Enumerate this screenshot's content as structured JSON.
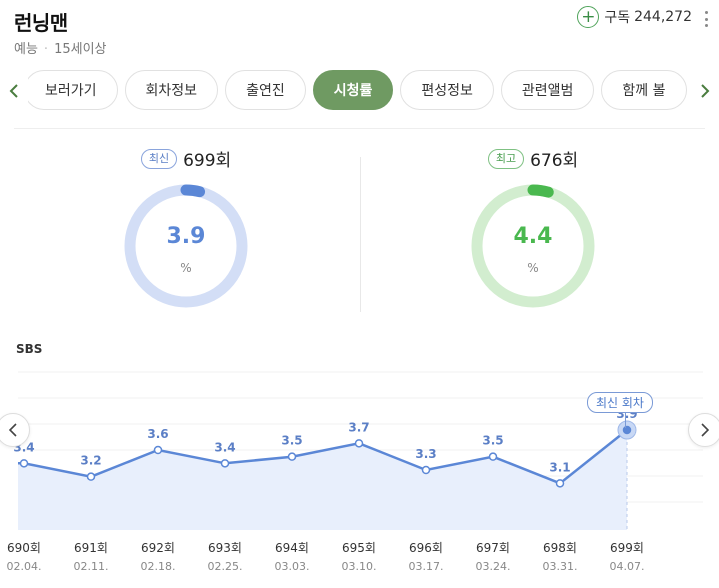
{
  "header": {
    "title": "런닝맨",
    "genre": "예능",
    "age_rating": "15세이상",
    "subscribe_label": "구독",
    "subscribe_count": "244,272"
  },
  "tabs": [
    {
      "label": "보러가기",
      "active": false
    },
    {
      "label": "회차정보",
      "active": false
    },
    {
      "label": "출연진",
      "active": false
    },
    {
      "label": "시청률",
      "active": true
    },
    {
      "label": "편성정보",
      "active": false
    },
    {
      "label": "관련앨범",
      "active": false
    },
    {
      "label": "함께 볼",
      "active": false
    }
  ],
  "latest": {
    "badge": "최신",
    "episode": "699회",
    "value": "3.9",
    "fraction": 0.039,
    "unit": "%",
    "color": "#5b87d6",
    "track_color": "#d3def6"
  },
  "best": {
    "badge": "최고",
    "episode": "676회",
    "value": "4.4",
    "fraction": 0.044,
    "unit": "%",
    "color": "#4ab84f",
    "track_color": "#d2edcf"
  },
  "chart_label": "SBS",
  "chart_callout": "최신 회차",
  "chart_data": {
    "type": "area",
    "episodes": [
      "690회",
      "691회",
      "692회",
      "693회",
      "694회",
      "695회",
      "696회",
      "697회",
      "698회",
      "699회"
    ],
    "dates": [
      "02.04.",
      "02.11.",
      "02.18.",
      "02.25.",
      "03.03.",
      "03.10.",
      "03.17.",
      "03.24.",
      "03.31.",
      "04.07."
    ],
    "labels": [
      "3.4",
      "3.2",
      "3.6",
      "3.4",
      "3.5",
      "3.7",
      "3.3",
      "3.5",
      "3.1",
      "3.9"
    ],
    "values": [
      3.4,
      3.2,
      3.6,
      3.4,
      3.5,
      3.7,
      3.3,
      3.5,
      3.1,
      3.9
    ],
    "line_color": "#5b87d6",
    "fill_color": "#e8effc"
  }
}
